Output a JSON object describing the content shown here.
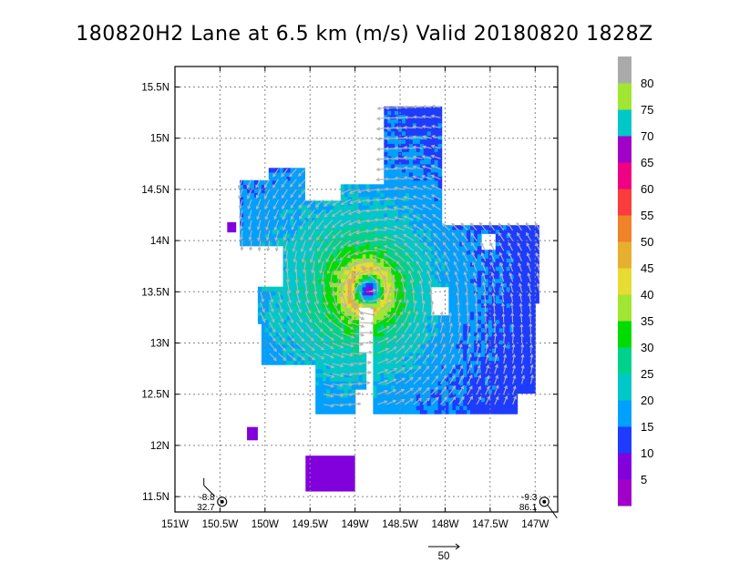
{
  "chart_data": {
    "type": "heatmap",
    "title": "180820H2 Lane at 6.5 km (m/s) Valid 20180820  1828Z",
    "xlim": [
      -151.0,
      -146.75
    ],
    "ylim": [
      11.35,
      15.7
    ],
    "x_ticks": [
      {
        "value": -151.0,
        "label": "151W"
      },
      {
        "value": -150.5,
        "label": "150.5W"
      },
      {
        "value": -150.0,
        "label": "150W"
      },
      {
        "value": -149.5,
        "label": "149.5W"
      },
      {
        "value": -149.0,
        "label": "149W"
      },
      {
        "value": -148.5,
        "label": "148.5W"
      },
      {
        "value": -148.0,
        "label": "148W"
      },
      {
        "value": -147.5,
        "label": "147.5W"
      },
      {
        "value": -147.0,
        "label": "147W"
      }
    ],
    "y_ticks": [
      {
        "value": 11.5,
        "label": "11.5N"
      },
      {
        "value": 12.0,
        "label": "12N"
      },
      {
        "value": 12.5,
        "label": "12.5N"
      },
      {
        "value": 13.0,
        "label": "13N"
      },
      {
        "value": 13.5,
        "label": "13.5N"
      },
      {
        "value": 14.0,
        "label": "14N"
      },
      {
        "value": 14.5,
        "label": "14.5N"
      },
      {
        "value": 15.0,
        "label": "15N"
      },
      {
        "value": 15.5,
        "label": "15.5N"
      }
    ],
    "grid": true,
    "colorbar": {
      "labels": [
        "5",
        "10",
        "15",
        "20",
        "25",
        "30",
        "35",
        "40",
        "45",
        "50",
        "55",
        "60",
        "65",
        "70",
        "75",
        "80"
      ],
      "colors": [
        "#a000c8",
        "#8200dc",
        "#1e3cff",
        "#00a0ff",
        "#00c8c8",
        "#00d28c",
        "#00dc00",
        "#a0e632",
        "#e6dc32",
        "#e6af2d",
        "#f08228",
        "#fa3c3c",
        "#f00082",
        "#a000c8",
        "#00c8c8",
        "#a0e632",
        "#aaaaaa"
      ],
      "vmin": 0,
      "vmax": 85
    },
    "center": {
      "lon": -148.85,
      "lat": 13.52
    },
    "rmw_deg": 0.2,
    "vmax_ms": 46,
    "shear_deg": 8,
    "regions": [
      {
        "x1": -150.3,
        "y1": 13.95,
        "x2": -149.8,
        "y2": 14.6
      },
      {
        "x1": -149.95,
        "y1": 14.15,
        "x2": -149.55,
        "y2": 14.7
      },
      {
        "x1": -149.8,
        "y1": 13.35,
        "x2": -148.35,
        "y2": 14.4
      },
      {
        "x1": -148.7,
        "y1": 14.0,
        "x2": -148.05,
        "y2": 15.3
      },
      {
        "x1": -149.15,
        "y1": 14.2,
        "x2": -148.6,
        "y2": 14.55
      },
      {
        "x1": -148.4,
        "y1": 13.4,
        "x2": -146.95,
        "y2": 14.15
      },
      {
        "x1": -150.05,
        "y1": 12.8,
        "x2": -148.95,
        "y2": 13.5
      },
      {
        "x1": -150.1,
        "y1": 13.2,
        "x2": -149.7,
        "y2": 13.55
      },
      {
        "x1": -149.45,
        "y1": 12.55,
        "x2": -148.9,
        "y2": 12.9
      },
      {
        "x1": -148.8,
        "y1": 12.3,
        "x2": -147.2,
        "y2": 13.4
      },
      {
        "x1": -147.45,
        "y1": 12.5,
        "x2": -147.0,
        "y2": 13.4
      },
      {
        "x1": -149.45,
        "y1": 12.3,
        "x2": -149.0,
        "y2": 12.55
      }
    ],
    "holes": [
      {
        "x1": -148.15,
        "y1": 13.28,
        "x2": -147.95,
        "y2": 13.55
      },
      {
        "x1": -147.6,
        "y1": 13.9,
        "x2": -147.45,
        "y2": 14.05
      }
    ],
    "patches": [
      {
        "x1": -150.42,
        "y1": 14.08,
        "x2": -150.32,
        "y2": 14.18,
        "value": 6
      },
      {
        "x1": -150.2,
        "y1": 12.05,
        "x2": -150.08,
        "y2": 12.18,
        "value": 6
      },
      {
        "x1": -149.55,
        "y1": 11.55,
        "x2": -149.0,
        "y2": 11.9,
        "value": 6
      }
    ],
    "wind_vector_scale": {
      "label": "50",
      "value": 50
    },
    "annotations": [
      {
        "lines": [
          "-8.8",
          "32.7"
        ],
        "lon": -150.75,
        "lat": 11.45
      },
      {
        "lines": [
          "-9.3",
          "86.1"
        ],
        "lon": -147.0,
        "lat": 11.45
      }
    ]
  }
}
